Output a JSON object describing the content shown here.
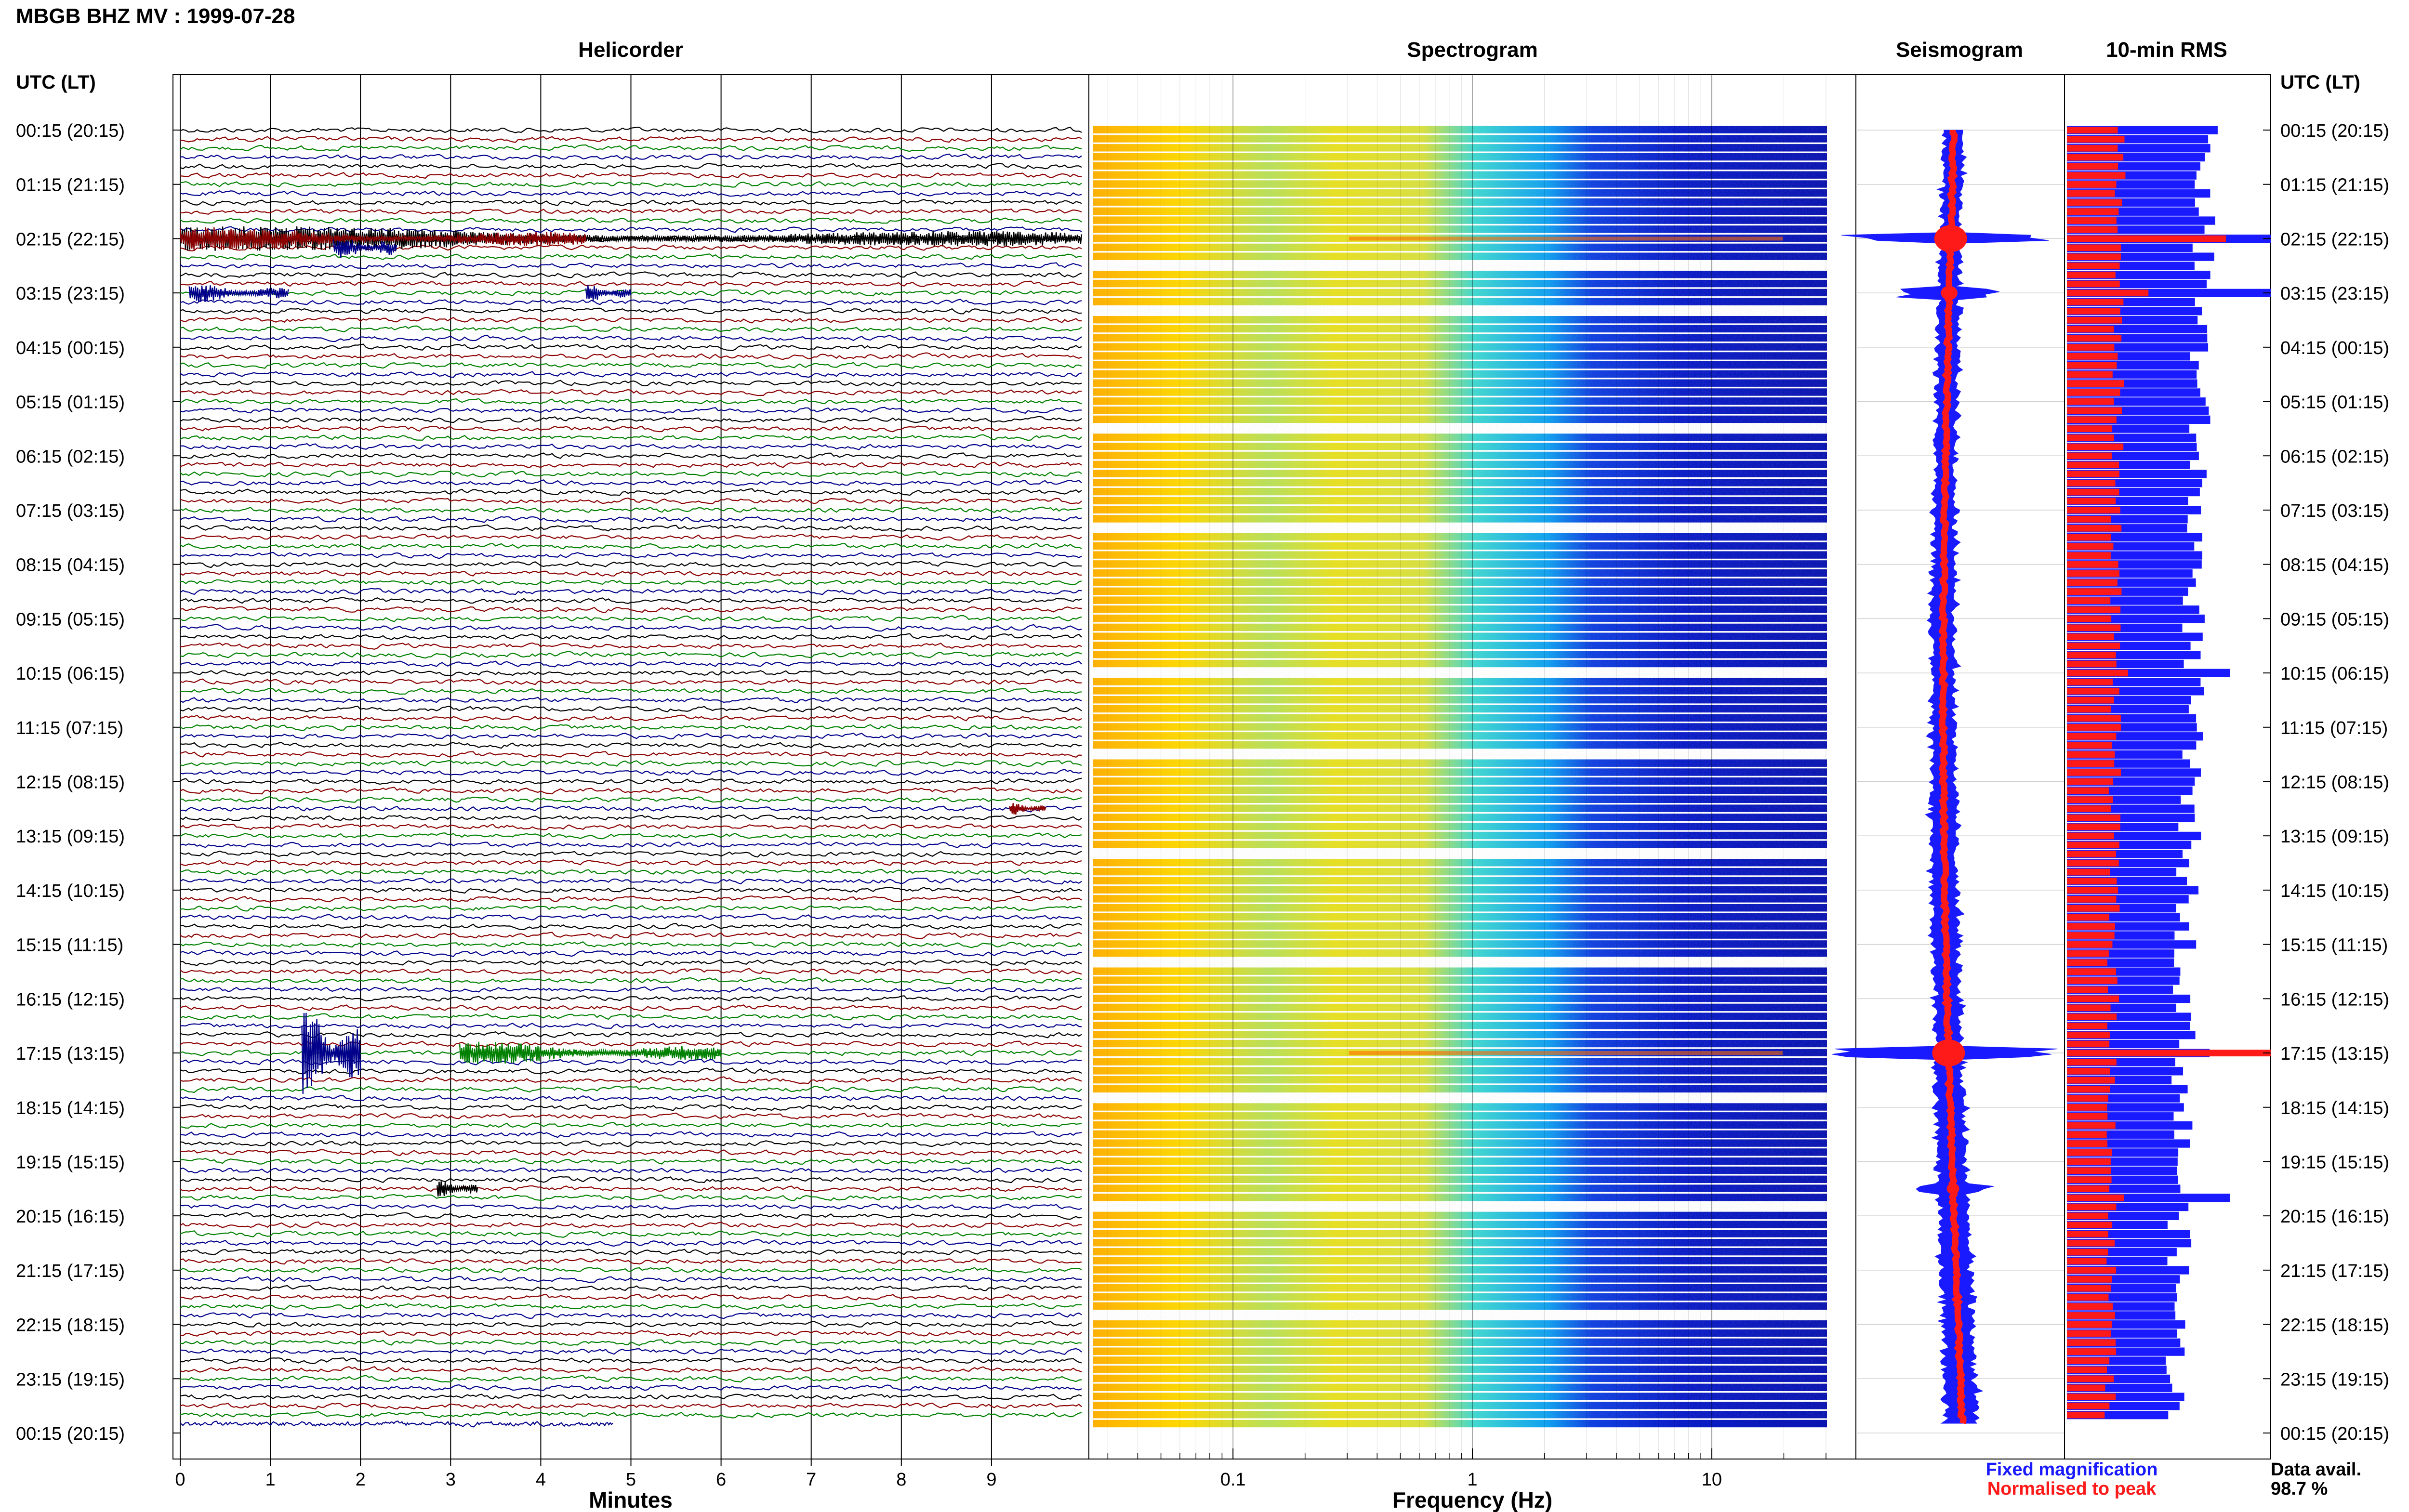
{
  "header": {
    "station_title": "MBGB BHZ MV : 1999-07-28",
    "left_axis_label": "UTC (LT)",
    "right_axis_label": "UTC (LT)"
  },
  "time_labels": [
    "00:15 (20:15)",
    "01:15 (21:15)",
    "02:15 (22:15)",
    "03:15 (23:15)",
    "04:15 (00:15)",
    "05:15 (01:15)",
    "06:15 (02:15)",
    "07:15 (03:15)",
    "08:15 (04:15)",
    "09:15 (05:15)",
    "10:15 (06:15)",
    "11:15 (07:15)",
    "12:15 (08:15)",
    "13:15 (09:15)",
    "14:15 (10:15)",
    "15:15 (11:15)",
    "16:15 (12:15)",
    "17:15 (13:15)",
    "18:15 (14:15)",
    "19:15 (15:15)",
    "20:15 (16:15)",
    "21:15 (17:15)",
    "22:15 (18:15)",
    "23:15 (19:15)",
    "00:15 (20:15)"
  ],
  "legend": {
    "fixed_label": "Fixed magnification",
    "normalised_label": "Normalised to peak",
    "fixed_color": "#1a1aff",
    "normalised_color": "#ff1a1a"
  },
  "availability": {
    "label": "Data avail.",
    "value": "98.7 %"
  },
  "colors": {
    "helicorder_traces": [
      "#000000",
      "#8b0000",
      "#008000",
      "#00008b"
    ],
    "spectrogram_low": "#00008b",
    "spectrogram_high": "#ffa500"
  },
  "chart_data": [
    {
      "type": "line",
      "title": "Helicorder",
      "xlabel": "Minutes",
      "x_ticks": [
        "0",
        "1",
        "2",
        "3",
        "4",
        "5",
        "6",
        "7",
        "8",
        "9"
      ],
      "xlim": [
        0,
        10
      ],
      "rows_per_hour": 6,
      "row_count": 144,
      "events": [
        {
          "row": 12,
          "start_min": 0,
          "end_min": 10,
          "amp": 2.6,
          "color_index": 0
        },
        {
          "row": 12,
          "start_min": 0,
          "end_min": 4.5,
          "amp": 2.4,
          "color_index": 1
        },
        {
          "row": 13,
          "start_min": 1.7,
          "end_min": 2.4,
          "amp": 2.5,
          "color_index": 3
        },
        {
          "row": 18,
          "start_min": 0.1,
          "end_min": 1.2,
          "amp": 2.0,
          "color_index": 3
        },
        {
          "row": 18,
          "start_min": 4.5,
          "end_min": 5.0,
          "amp": 1.8,
          "color_index": 3
        },
        {
          "row": 75,
          "start_min": 9.2,
          "end_min": 9.6,
          "amp": 1.3,
          "color_index": 1
        },
        {
          "row": 102,
          "start_min": 1.35,
          "end_min": 2.0,
          "amp": 9.0,
          "color_index": 3
        },
        {
          "row": 102,
          "start_min": 3.1,
          "end_min": 6.0,
          "amp": 2.4,
          "color_index": 2
        },
        {
          "row": 117,
          "start_min": 2.85,
          "end_min": 3.3,
          "amp": 1.7,
          "color_index": 0
        }
      ]
    },
    {
      "type": "heatmap",
      "title": "Spectrogram",
      "xlabel": "Frequency (Hz)",
      "x_scale": "log",
      "x_ticks": [
        "0.1",
        "1",
        "10"
      ],
      "xlim": [
        0.025,
        40
      ],
      "colormap": "jet",
      "power_by_frequency": [
        {
          "freq": 0.03,
          "level": 0.82
        },
        {
          "freq": 0.1,
          "level": 0.65
        },
        {
          "freq": 0.3,
          "level": 0.66
        },
        {
          "freq": 1,
          "level": 0.42
        },
        {
          "freq": 2,
          "level": 0.22
        },
        {
          "freq": 5,
          "level": 0.1
        },
        {
          "freq": 10,
          "level": 0.05
        },
        {
          "freq": 40,
          "level": 0.03
        }
      ]
    },
    {
      "type": "line",
      "title": "Seismogram",
      "events": [
        {
          "row": 12,
          "amp": 1.0
        },
        {
          "row": 18,
          "amp": 0.4
        },
        {
          "row": 102,
          "amp": 1.0
        },
        {
          "row": 117,
          "amp": 0.25
        }
      ]
    },
    {
      "type": "bar",
      "title": "10-min RMS",
      "series_names": [
        "Fixed magnification",
        "Normalised to peak"
      ],
      "spikes": [
        {
          "row": 12,
          "fixed": 1.0,
          "normalised": 0.78
        },
        {
          "row": 18,
          "fixed": 1.0,
          "normalised": 0.4
        },
        {
          "row": 60,
          "fixed": 0.8,
          "normalised": 0.3
        },
        {
          "row": 102,
          "fixed": 0.7,
          "normalised": 1.0
        },
        {
          "row": 118,
          "fixed": 0.8,
          "normalised": 0.28
        }
      ],
      "baseline_fixed": 0.68,
      "baseline_normalised": 0.26
    }
  ]
}
